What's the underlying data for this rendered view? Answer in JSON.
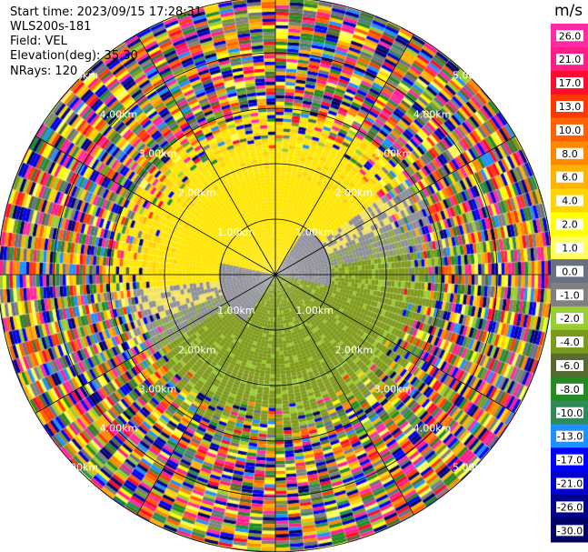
{
  "header": {
    "start_time": "Start time: 2023/09/15 17:28:31",
    "instrument": "WLS200s-181",
    "field": "Field: VEL",
    "elevation": "Elevation(deg): 35.30",
    "nrays": "NRays: 120"
  },
  "chart_data": {
    "type": "heatmap",
    "projection": "polar-ppi",
    "field": "VEL",
    "unit": "m/s",
    "nrays": 120,
    "max_range_km": 5.0,
    "ring_labels_km": [
      "1.00km",
      "2.00km",
      "3.00km",
      "4.00km",
      "5.00km"
    ],
    "radial_lines_deg": [
      0,
      30,
      60,
      90,
      120,
      150,
      180,
      210,
      240,
      270,
      300,
      330
    ],
    "colorbar": {
      "unit": "m/s",
      "tick_labels": [
        "26.0",
        "21.0",
        "17.0",
        "13.0",
        "10.0",
        "8.0",
        "6.0",
        "4.0",
        "2.0",
        "1.0",
        "0.0",
        "-1.0",
        "-2.0",
        "-4.0",
        "-6.0",
        "-8.0",
        "-10.0",
        "-13.0",
        "-17.0",
        "-21.0",
        "-26.0",
        "-30.0"
      ],
      "colors": [
        "#ff2aa5",
        "#ff1f8a",
        "#ff0b2d",
        "#ff3a00",
        "#ff6200",
        "#ff8a00",
        "#ffb200",
        "#ffd400",
        "#ffff00",
        "#ffff5a",
        "#6b7080",
        "#808080",
        "#9acd32",
        "#7a9a1e",
        "#556b2f",
        "#228b22",
        "#2e8b57",
        "#1e90ff",
        "#0000ff",
        "#0000cd",
        "#00008b",
        "#000066"
      ]
    },
    "near_field": {
      "approaching_color": "#ffe600",
      "receding_color": "#7f9a1a",
      "zero_color": "#8e8e98"
    }
  }
}
